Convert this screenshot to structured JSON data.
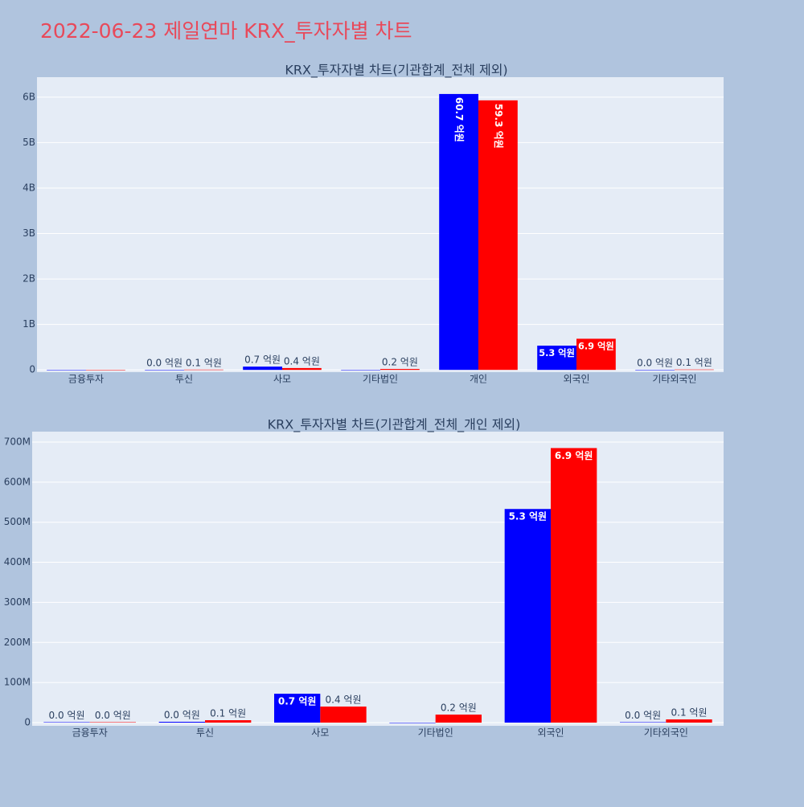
{
  "title": "2022-06-23 제일연마 KRX_투자자별 차트",
  "chart_data": [
    {
      "type": "bar",
      "title": "KRX_투자자별 차트(기관합계_전체 제외)",
      "categories": [
        "금융투자",
        "투신",
        "사모",
        "기타법인",
        "개인",
        "외국인",
        "기타외국인"
      ],
      "series": [
        {
          "color": "#0000ff",
          "values": [
            1000000,
            2000000,
            72000000,
            0,
            6070000000,
            533000000,
            1000000
          ],
          "value_labels": [
            null,
            "0.0 억원",
            "0.7 억원",
            null,
            "60.7 억원",
            "5.3 억원",
            "0.0 억원"
          ]
        },
        {
          "color": "#ff0000",
          "values": [
            1000000,
            6000000,
            40000000,
            20000000,
            5930000000,
            685000000,
            8000000
          ],
          "value_labels": [
            null,
            "0.1 억원",
            "0.4 억원",
            "0.2 억원",
            "59.3 억원",
            "6.9 억원",
            "0.1 억원"
          ]
        }
      ],
      "ylim": [
        -50000000,
        6440000000
      ],
      "yticks": [
        0,
        {
          "value": 1000000000,
          "label": "1B"
        },
        {
          "value": 2000000000,
          "label": "2B"
        },
        {
          "value": 3000000000,
          "label": "3B"
        },
        {
          "value": 4000000000,
          "label": "4B"
        },
        {
          "value": 5000000000,
          "label": "5B"
        },
        {
          "value": 6000000000,
          "label": "6B"
        }
      ],
      "grid": true
    },
    {
      "type": "bar",
      "title": "KRX_투자자별 차트(기관합계_전체_개인 제외)",
      "categories": [
        "금융투자",
        "투신",
        "사모",
        "기타법인",
        "외국인",
        "기타외국인"
      ],
      "series": [
        {
          "color": "#0000ff",
          "values": [
            1000000,
            2000000,
            72000000,
            0,
            533000000,
            1000000
          ],
          "value_labels": [
            "0.0 억원",
            "0.0 억원",
            "0.7 억원",
            null,
            "5.3 억원",
            "0.0 억원"
          ]
        },
        {
          "color": "#ff0000",
          "values": [
            1000000,
            6000000,
            40000000,
            20000000,
            685000000,
            8000000
          ],
          "value_labels": [
            "0.0 억원",
            "0.1 억원",
            "0.4 억원",
            "0.2 억원",
            "6.9 억원",
            "0.1 억원"
          ]
        }
      ],
      "ylim": [
        -8000000,
        726000000
      ],
      "yticks": [
        0,
        {
          "value": 100000000,
          "label": "100M"
        },
        {
          "value": 200000000,
          "label": "200M"
        },
        {
          "value": 300000000,
          "label": "300M"
        },
        {
          "value": 400000000,
          "label": "400M"
        },
        {
          "value": 500000000,
          "label": "500M"
        },
        {
          "value": 600000000,
          "label": "600M"
        },
        {
          "value": 700000000,
          "label": "700M"
        }
      ],
      "grid": true
    }
  ]
}
